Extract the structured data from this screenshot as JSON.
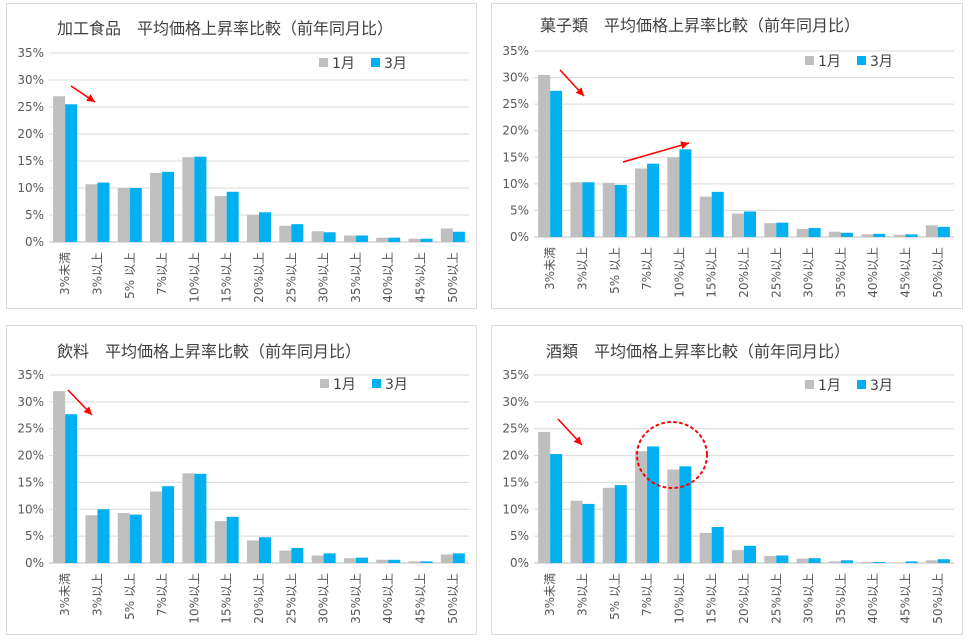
{
  "colors": {
    "jan": "#bfbfbf",
    "mar": "#00b0f0",
    "arrow": "#ff0000",
    "circle": "#ff0000"
  },
  "legend": {
    "jan": "1月",
    "mar": "3月"
  },
  "yticks": [
    "0%",
    "5%",
    "10%",
    "15%",
    "20%",
    "25%",
    "30%",
    "35%"
  ],
  "categories": [
    "3%未満",
    "3%以上",
    "5% 以上",
    "7%以上",
    "10%以上",
    "15%以上",
    "20%以上",
    "25%以上",
    "30%以上",
    "35%以上",
    "40%以上",
    "45%以上",
    "50%以上"
  ],
  "chart_data": [
    {
      "type": "bar",
      "title": "加工食品　平均価格上昇率比較（前年同月比）",
      "ylim": [
        0,
        35
      ],
      "series": [
        {
          "name": "1月",
          "values": [
            27.0,
            10.7,
            10.0,
            12.8,
            15.7,
            8.5,
            5.0,
            3.0,
            2.0,
            1.2,
            0.8,
            0.6,
            2.5
          ]
        },
        {
          "name": "3月",
          "values": [
            25.5,
            11.0,
            10.0,
            13.0,
            15.8,
            9.3,
            5.5,
            3.3,
            1.8,
            1.2,
            0.8,
            0.6,
            1.9
          ]
        }
      ]
    },
    {
      "type": "bar",
      "title": "菓子類　平均価格上昇率比較（前年同月比）",
      "ylim": [
        0,
        35
      ],
      "series": [
        {
          "name": "1月",
          "values": [
            30.5,
            10.3,
            10.2,
            12.9,
            15.0,
            7.6,
            4.4,
            2.6,
            1.5,
            1.0,
            0.5,
            0.4,
            2.2
          ]
        },
        {
          "name": "3月",
          "values": [
            27.5,
            10.3,
            9.8,
            13.8,
            16.5,
            8.5,
            4.8,
            2.7,
            1.7,
            0.8,
            0.6,
            0.5,
            1.9
          ]
        }
      ]
    },
    {
      "type": "bar",
      "title": "飲料　平均価格上昇率比較（前年同月比）",
      "ylim": [
        0,
        35
      ],
      "series": [
        {
          "name": "1月",
          "values": [
            32.0,
            8.9,
            9.3,
            13.3,
            16.7,
            7.8,
            4.2,
            2.3,
            1.4,
            0.9,
            0.6,
            0.3,
            1.6
          ]
        },
        {
          "name": "3月",
          "values": [
            27.7,
            10.0,
            9.0,
            14.3,
            16.6,
            8.6,
            4.8,
            2.8,
            1.8,
            1.0,
            0.6,
            0.3,
            1.8
          ]
        }
      ]
    },
    {
      "type": "bar",
      "title": "酒類　平均価格上昇率比較（前年同月比）",
      "ylim": [
        0,
        35
      ],
      "series": [
        {
          "name": "1月",
          "values": [
            24.4,
            11.6,
            14.0,
            20.8,
            17.4,
            5.6,
            2.4,
            1.3,
            0.8,
            0.3,
            0.2,
            0.1,
            0.5
          ]
        },
        {
          "name": "3月",
          "values": [
            20.3,
            11.0,
            14.5,
            21.7,
            18.0,
            6.7,
            3.2,
            1.4,
            0.9,
            0.5,
            0.2,
            0.3,
            0.7
          ]
        }
      ]
    }
  ]
}
